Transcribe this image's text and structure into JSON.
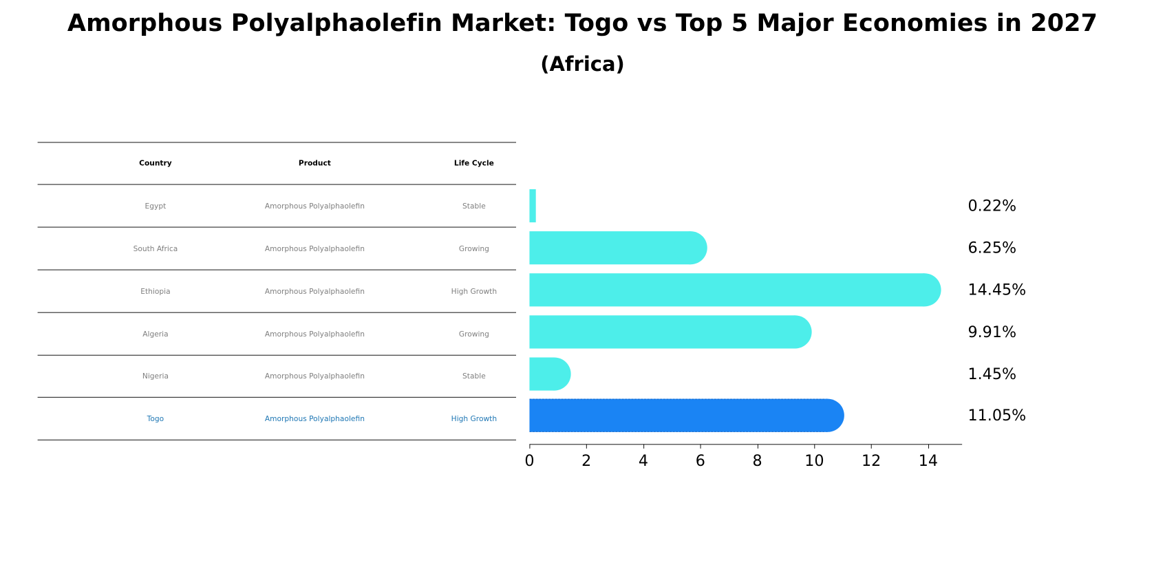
{
  "title": "Amorphous Polyalphaolefin Market: Togo vs Top 5 Major Economies in 2027",
  "subtitle": "(Africa)",
  "table": {
    "headers": [
      "Country",
      "Product",
      "Life Cycle"
    ],
    "rows": [
      {
        "country": "Egypt",
        "product": "Amorphous Polyalphaolefin",
        "life_cycle": "Stable",
        "highlight": false
      },
      {
        "country": "South Africa",
        "product": "Amorphous Polyalphaolefin",
        "life_cycle": "Growing",
        "highlight": false
      },
      {
        "country": "Ethiopia",
        "product": "Amorphous Polyalphaolefin",
        "life_cycle": "High Growth",
        "highlight": false
      },
      {
        "country": "Algeria",
        "product": "Amorphous Polyalphaolefin",
        "life_cycle": "Growing",
        "highlight": false
      },
      {
        "country": "Nigeria",
        "product": "Amorphous Polyalphaolefin",
        "life_cycle": "Stable",
        "highlight": false
      },
      {
        "country": "Togo",
        "product": "Amorphous Polyalphaolefin",
        "life_cycle": "High Growth",
        "highlight": true
      }
    ]
  },
  "colors": {
    "bar_default": "#4deeea",
    "bar_highlight": "#1a84f4",
    "table_text": "#7f7f7f",
    "table_highlight_text": "#1f77b4"
  },
  "chart_data": {
    "type": "bar",
    "orientation": "horizontal",
    "title": "Amorphous Polyalphaolefin Market: Togo vs Top 5 Major Economies in 2027",
    "subtitle": "(Africa)",
    "categories": [
      "Egypt",
      "South Africa",
      "Ethiopia",
      "Algeria",
      "Nigeria",
      "Togo"
    ],
    "values": [
      0.22,
      6.25,
      14.45,
      9.91,
      1.45,
      11.05
    ],
    "value_labels": [
      "0.22%",
      "6.25%",
      "14.45%",
      "9.91%",
      "1.45%",
      "11.05%"
    ],
    "highlight_category": "Togo",
    "xlabel": "",
    "ylabel": "",
    "xlim": [
      0,
      15.2
    ],
    "xticks": [
      0,
      2,
      4,
      6,
      8,
      10,
      12,
      14
    ],
    "xtick_labels": [
      "0",
      "2",
      "4",
      "6",
      "8",
      "10",
      "12",
      "14"
    ],
    "grid": false,
    "legend": null
  }
}
